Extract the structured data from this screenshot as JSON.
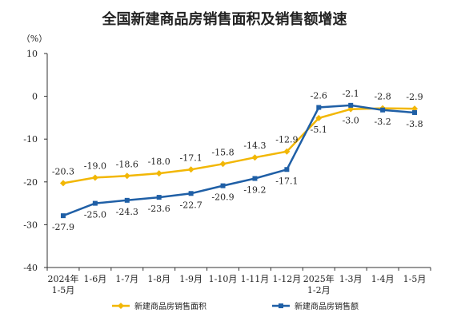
{
  "chart_data": {
    "type": "line",
    "title": "全国新建商品房销售面积及销售额增速",
    "unit_label": "（%）",
    "categories": [
      [
        "2024年",
        "1-5月"
      ],
      [
        "1-6月"
      ],
      [
        "1-7月"
      ],
      [
        "1-8月"
      ],
      [
        "1-9月"
      ],
      [
        "1-10月"
      ],
      [
        "1-11月"
      ],
      [
        "1-12月"
      ],
      [
        "2025年",
        "1-2月"
      ],
      [
        "1-3月"
      ],
      [
        "1-4月"
      ],
      [
        "1-5月"
      ]
    ],
    "ylim": [
      -40,
      10
    ],
    "yticks": [
      10,
      0,
      -10,
      -20,
      -30,
      -40
    ],
    "grid": false,
    "legend_position": "bottom",
    "series": [
      {
        "name": "新建商品房销售面积",
        "color": "#f2b705",
        "marker": "diamond",
        "values": [
          -20.3,
          -19.0,
          -18.6,
          -18.0,
          -17.1,
          -15.8,
          -14.3,
          -12.9,
          -5.1,
          -3.0,
          -2.8,
          -2.9
        ],
        "labels": [
          "-20.3",
          "-19.0",
          "-18.6",
          "-18.0",
          "-17.1",
          "-15.8",
          "-14.3",
          "-12.9",
          "-5.1",
          "-3.0",
          "-2.8",
          "-2.9"
        ]
      },
      {
        "name": "新建商品房销售额",
        "color": "#1f5fa6",
        "marker": "square",
        "values": [
          -27.9,
          -25.0,
          -24.3,
          -23.6,
          -22.7,
          -20.9,
          -19.2,
          -17.1,
          -2.6,
          -2.1,
          -3.2,
          -3.8
        ],
        "labels": [
          "-27.9",
          "-25.0",
          "-24.3",
          "-23.6",
          "-22.7",
          "-20.9",
          "-19.2",
          "-17.1",
          "-2.6",
          "-2.1",
          "-3.2",
          "-3.8"
        ]
      }
    ]
  }
}
